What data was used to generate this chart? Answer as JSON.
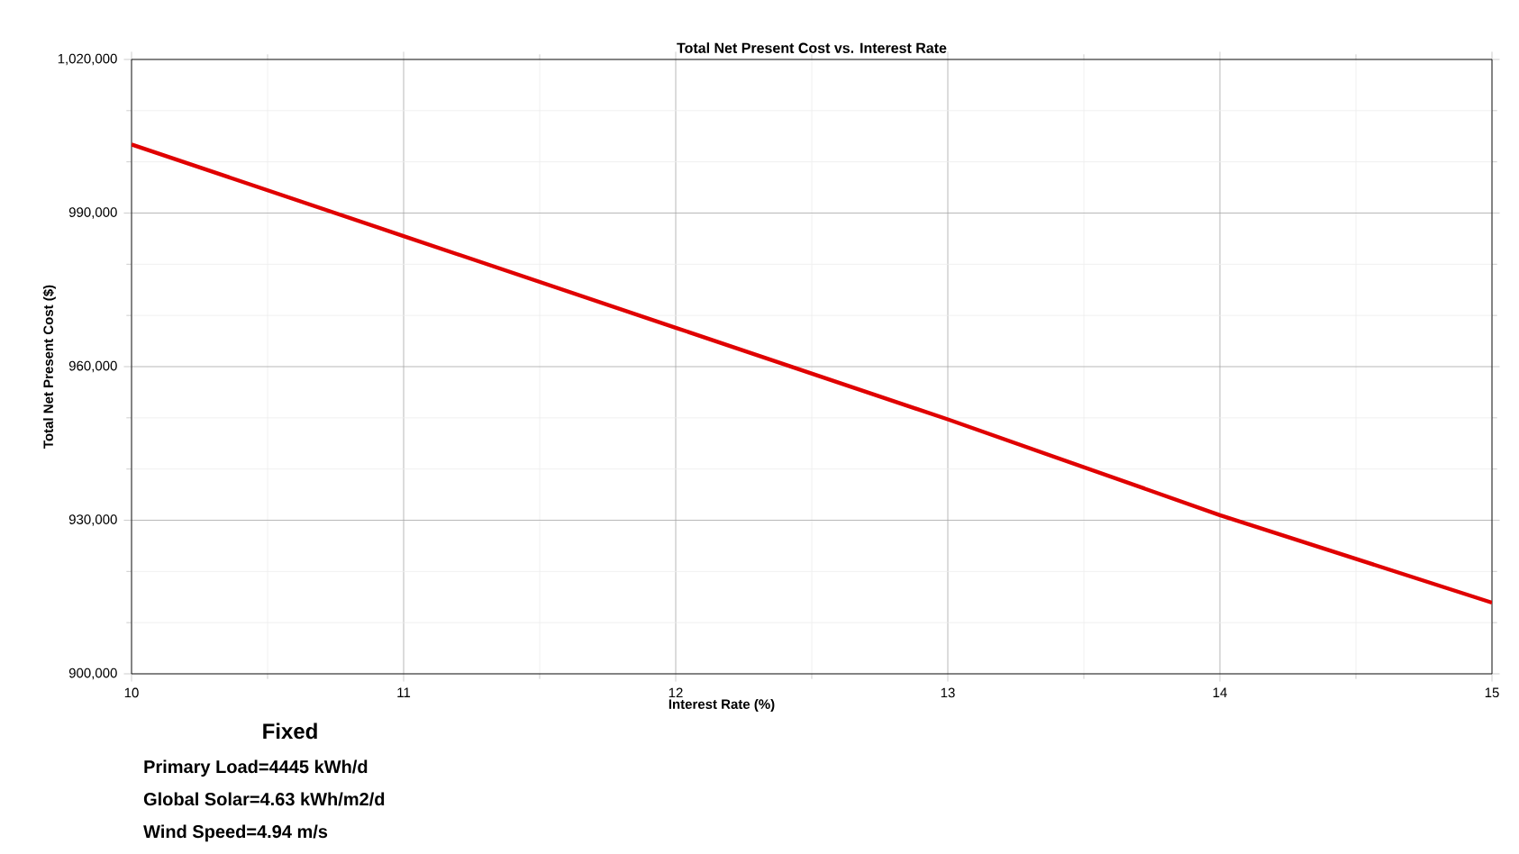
{
  "chart_data": {
    "type": "line",
    "title": "Total Net Present Cost vs. Interest Rate",
    "xlabel": "Interest Rate (%)",
    "ylabel": "Total Net Present Cost ($)",
    "x": [
      10,
      11,
      12,
      13,
      14,
      15
    ],
    "series": [
      {
        "color": "#e00000",
        "values": [
          1003400,
          985500,
          967600,
          949700,
          931000,
          913900
        ]
      }
    ],
    "xlim": [
      10,
      15
    ],
    "ylim": [
      900000,
      1020000
    ],
    "xticks": [
      10,
      11,
      12,
      13,
      14,
      15
    ],
    "yticks": [
      {
        "value": 900000,
        "label": "900,000"
      },
      {
        "value": 930000,
        "label": "930,000"
      },
      {
        "value": 960000,
        "label": "960,000"
      },
      {
        "value": 990000,
        "label": "990,000"
      },
      {
        "value": 1020000,
        "label": "1,020,000"
      }
    ],
    "grid": true,
    "marker": "none",
    "line_style": "solid",
    "annotations": [
      "Fixed",
      "Primary Load=4445 kWh/d",
      "Global Solar=4.63 kWh/m2/d",
      "Wind Speed=4.94 m/s"
    ]
  }
}
